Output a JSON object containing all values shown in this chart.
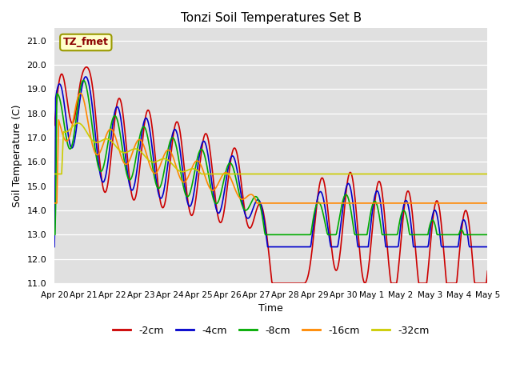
{
  "title": "Tonzi Soil Temperatures Set B",
  "xlabel": "Time",
  "ylabel": "Soil Temperature (C)",
  "ylim": [
    11.0,
    21.5
  ],
  "yticks": [
    11.0,
    12.0,
    13.0,
    14.0,
    15.0,
    16.0,
    17.0,
    18.0,
    19.0,
    20.0,
    21.0
  ],
  "bg_color": "#e0e0e0",
  "legend_label": "TZ_fmet",
  "series_colors": {
    "-2cm": "#cc0000",
    "-4cm": "#0000cc",
    "-8cm": "#00aa00",
    "-16cm": "#ff8800",
    "-32cm": "#cccc00"
  },
  "xtick_labels": [
    "Apr 20",
    "Apr 21",
    "Apr 22",
    "Apr 23",
    "Apr 24",
    "Apr 25",
    "Apr 26",
    "Apr 27",
    "Apr 28",
    "Apr 29",
    "Apr 30",
    "May 1",
    "May 2",
    "May 3",
    "May 4",
    "May 5"
  ],
  "n_points": 720
}
